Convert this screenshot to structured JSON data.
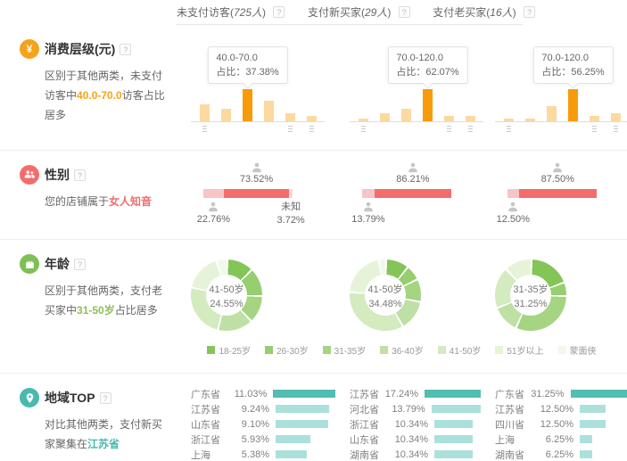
{
  "colors": {
    "orange": "#f5a31a",
    "orange_bar": "#f79b0a",
    "orange_bar_light": "#fbd9a0",
    "red": "#f56c6c",
    "pink_light": "#f8c5c6",
    "pink_unknown": "#fad8d8",
    "green": "#7fbf56",
    "teal": "#4ab9ae",
    "teal_bar": "#52bdb1",
    "teal_bar_light": "#abe0dc",
    "donut_palette": [
      "#84c558",
      "#97ce6f",
      "#a5d483",
      "#bfe0a4",
      "#d4eabf",
      "#e6f3d8",
      "#f2f9ec"
    ]
  },
  "header": {
    "tabs": [
      {
        "prefix": "未支付访客(",
        "count": "725人",
        "suffix": ")",
        "help": "?"
      },
      {
        "prefix": "支付新买家(",
        "count": "29人",
        "suffix": ")",
        "help": "?"
      },
      {
        "prefix": "支付老买家(",
        "count": "16人",
        "suffix": ")",
        "help": "?"
      }
    ]
  },
  "consumption": {
    "title": "消费层级(元)",
    "help": "?",
    "desc_pre": "区别于其他两类，未支付访客中",
    "desc_highlight": "40.0-70.0",
    "desc_post": "访客占比居多",
    "charts": [
      {
        "tooltip_range": "40.0-70.0",
        "tooltip_value": "占比：37.38%",
        "bars": [
          19,
          14,
          36,
          23,
          9,
          6
        ],
        "highlight_index": 2
      },
      {
        "tooltip_range": "70.0-120.0",
        "tooltip_value": "占比：62.07%",
        "bars": [
          3,
          9,
          14,
          36,
          6,
          6
        ],
        "highlight_index": 3
      },
      {
        "tooltip_range": "70.0-120.0",
        "tooltip_value": "占比：56.25%",
        "bars": [
          3,
          3,
          17,
          36,
          6,
          9
        ],
        "highlight_index": 3
      }
    ]
  },
  "gender": {
    "title": "性别",
    "help": "?",
    "desc_pre": "您的店铺属于",
    "desc_highlight": "女人知音",
    "charts": [
      {
        "female_pct": "73.52%",
        "male_pct": "22.76%",
        "female": 73.52,
        "male": 22.76,
        "unknown": 3.72,
        "unknown_label": "未知",
        "unknown_pct": "3.72%"
      },
      {
        "female_pct": "86.21%",
        "male_pct": "13.79%",
        "female": 86.21,
        "male": 13.79,
        "unknown": 0
      },
      {
        "female_pct": "87.50%",
        "male_pct": "12.50%",
        "female": 87.5,
        "male": 12.5,
        "unknown": 0
      }
    ]
  },
  "age": {
    "title": "年龄",
    "help": "?",
    "desc_pre": "区别于其他两类，支付老买家中",
    "desc_highlight": "31-50岁",
    "desc_post": "占比居多",
    "charts": [
      {
        "center_label": "41-50岁",
        "center_value": "24.55%",
        "segments": [
          12,
          13,
          12.45,
          16,
          24.55,
          17,
          5
        ]
      },
      {
        "center_label": "41-50岁",
        "center_value": "34.48%",
        "segments": [
          10.34,
          6.9,
          10.34,
          13.79,
          34.48,
          20.69,
          3.46
        ]
      },
      {
        "center_label": "31-35岁",
        "center_value": "31.25%",
        "segments": [
          18.75,
          6.25,
          31.25,
          12.5,
          18.75,
          12.5,
          0
        ]
      }
    ],
    "legend": [
      "18-25岁",
      "26-30岁",
      "31-35岁",
      "36-40岁",
      "41-50岁",
      "51岁以上",
      "蒙面侠"
    ]
  },
  "region": {
    "title": "地域TOP",
    "help": "?",
    "desc_pre": "对比其他两类，支付新买家聚集在",
    "desc_highlight": "江苏省",
    "lists": [
      [
        {
          "name": "广东省",
          "value": "11.03%",
          "pct": 11.03
        },
        {
          "name": "江苏省",
          "value": "9.24%",
          "pct": 9.24
        },
        {
          "name": "山东省",
          "value": "9.10%",
          "pct": 9.1
        },
        {
          "name": "浙江省",
          "value": "5.93%",
          "pct": 5.93
        },
        {
          "name": "上海",
          "value": "5.38%",
          "pct": 5.38
        }
      ],
      [
        {
          "name": "江苏省",
          "value": "17.24%",
          "pct": 17.24
        },
        {
          "name": "河北省",
          "value": "13.79%",
          "pct": 13.79
        },
        {
          "name": "浙江省",
          "value": "10.34%",
          "pct": 10.34
        },
        {
          "name": "山东省",
          "value": "10.34%",
          "pct": 10.34
        },
        {
          "name": "湖南省",
          "value": "10.34%",
          "pct": 10.34
        }
      ],
      [
        {
          "name": "广东省",
          "value": "31.25%",
          "pct": 31.25
        },
        {
          "name": "江苏省",
          "value": "12.50%",
          "pct": 12.5
        },
        {
          "name": "四川省",
          "value": "12.50%",
          "pct": 12.5
        },
        {
          "name": "上海",
          "value": "6.25%",
          "pct": 6.25
        },
        {
          "name": "湖南省",
          "value": "6.25%",
          "pct": 6.25
        }
      ]
    ]
  }
}
